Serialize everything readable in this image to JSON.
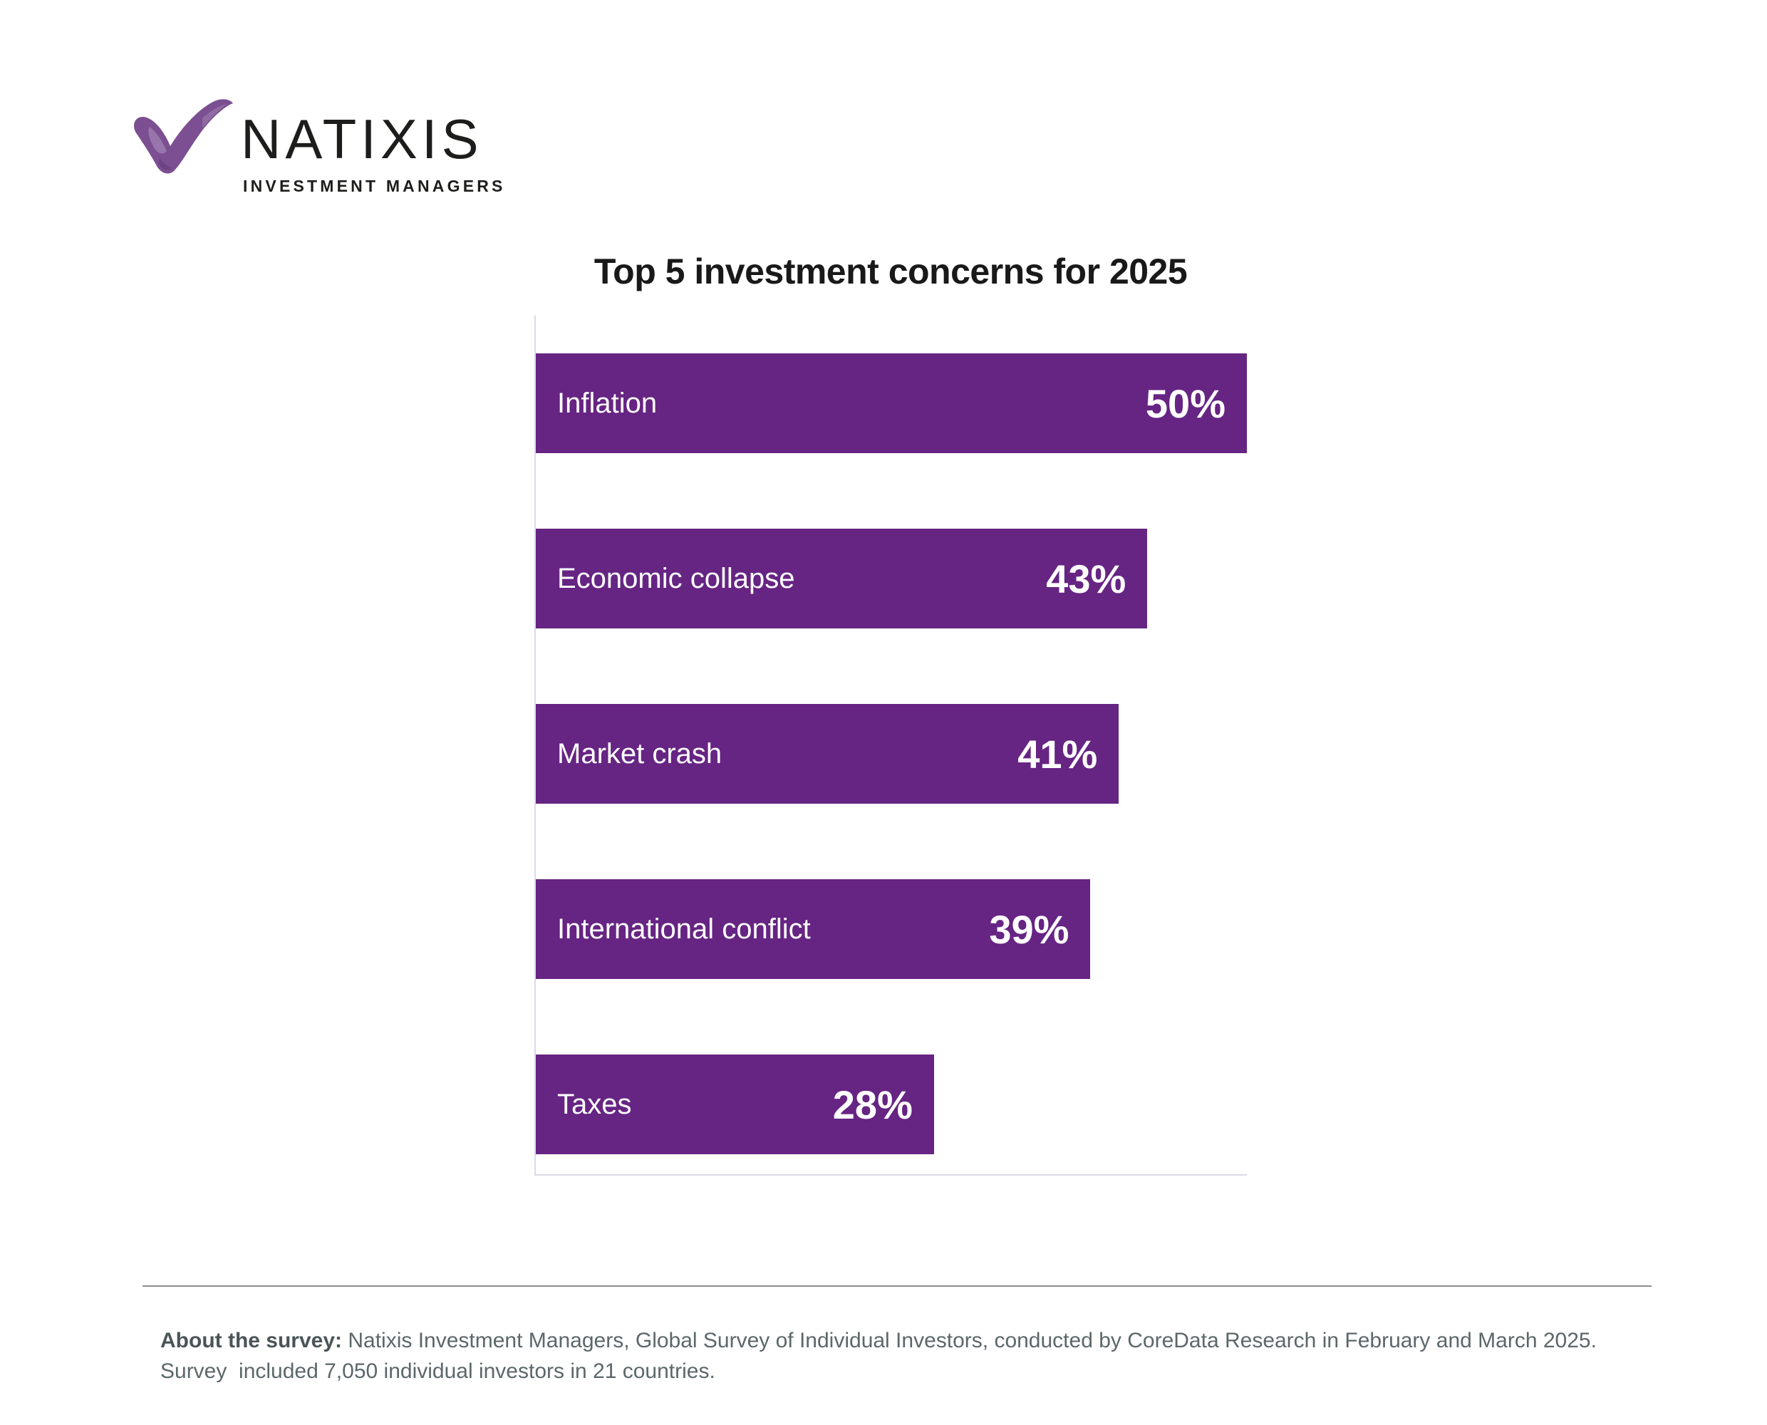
{
  "brand": {
    "name": "NATIXIS",
    "division": "INVESTMENT MANAGERS",
    "mark": "purple-brushstroke-checkmark",
    "mark_color": "#7b4f92",
    "text_color": "#1d1d1b"
  },
  "chart_data": {
    "type": "bar",
    "orientation": "horizontal",
    "title": "Top 5 investment concerns for 2025",
    "categories": [
      "Inflation",
      "Economic collapse",
      "Market crash",
      "International conflict",
      "Taxes"
    ],
    "values": [
      50,
      43,
      41,
      39,
      28
    ],
    "value_labels": [
      "50%",
      "43%",
      "41%",
      "39%",
      "28%"
    ],
    "unit": "%",
    "xlim": [
      0,
      50
    ],
    "bar_color": "#662483",
    "bar_text_color": "#ffffff",
    "axis_color": "#d9dae6",
    "grid": false,
    "legend": false
  },
  "footnote": {
    "label": "About the survey:",
    "line1_rest": " Natixis Investment Managers, Global Survey of Individual Investors, conducted by CoreData Research in February and March 2025.",
    "line2": "Survey  included 7,050 individual investors in 21 countries."
  },
  "divider_color": "#8b8b8b"
}
